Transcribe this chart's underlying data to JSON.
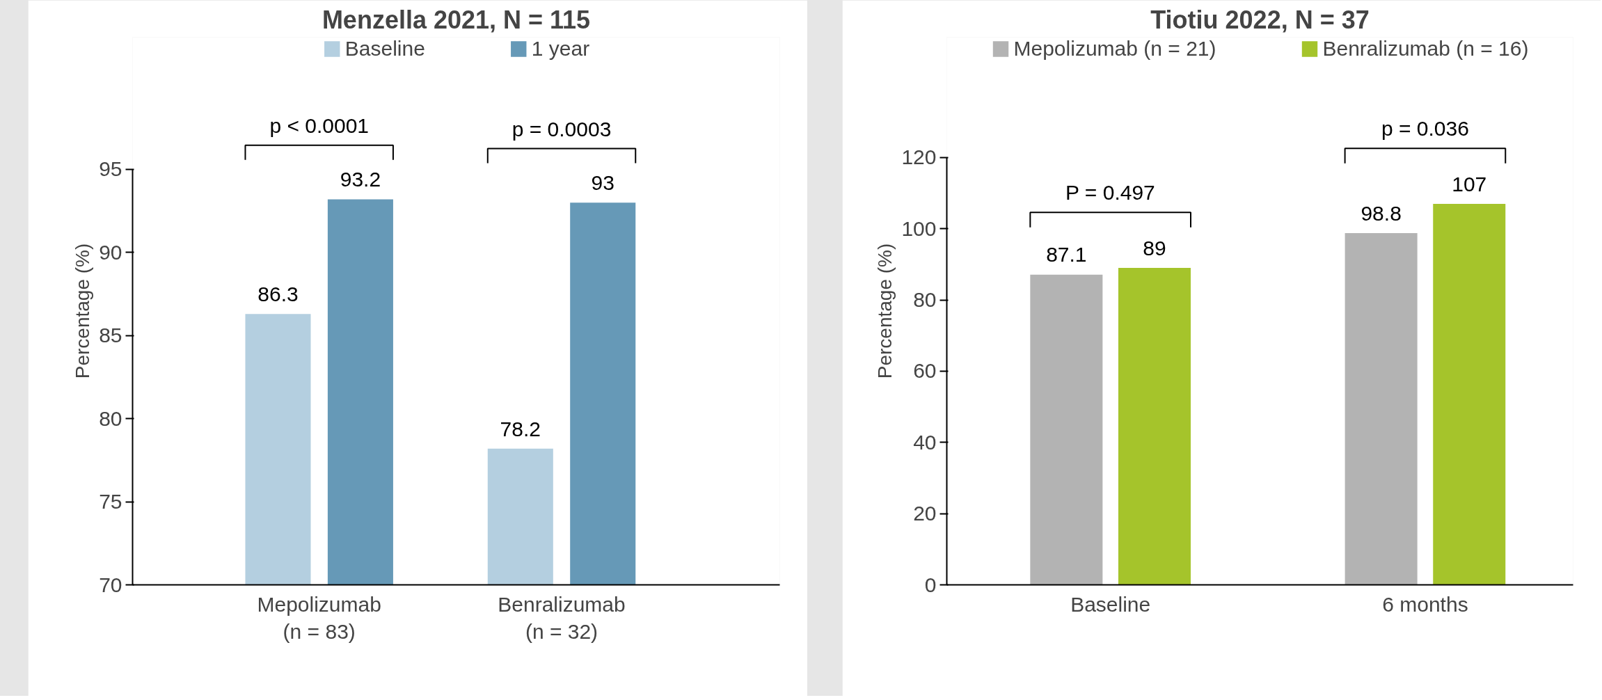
{
  "chart_data": [
    {
      "type": "bar",
      "title": "Menzella 2021, N = 115",
      "ylabel": "Percentage (%)",
      "categories": [
        "Mepolizumab\n(n = 83)",
        "Benralizumab\n(n = 32)"
      ],
      "series": [
        {
          "name": "Baseline",
          "color": "#b4cfe0",
          "values": [
            86.3,
            78.2
          ]
        },
        {
          "name": "1 year",
          "color": "#6699b7",
          "values": [
            93.2,
            93
          ]
        }
      ],
      "ylim": [
        70,
        95
      ],
      "yticks": [
        70,
        75,
        80,
        85,
        90,
        95
      ],
      "data_labels": true,
      "legend": "top",
      "grid": false,
      "annotations": [
        "p < 0.0001",
        "p = 0.0003"
      ]
    },
    {
      "type": "bar",
      "title": "Tiotiu 2022, N = 37",
      "ylabel": "Percentage (%)",
      "categories": [
        "Baseline",
        "6 months"
      ],
      "series": [
        {
          "name": "Mepolizumab (n = 21)",
          "color": "#b3b3b3",
          "values": [
            87.1,
            98.8
          ]
        },
        {
          "name": "Benralizumab (n = 16)",
          "color": "#a5c42b",
          "values": [
            89,
            107
          ]
        }
      ],
      "ylim": [
        0,
        120
      ],
      "yticks": [
        0,
        20,
        40,
        60,
        80,
        100,
        120
      ],
      "data_labels": true,
      "legend": "top",
      "grid": false,
      "annotations": [
        "P = 0.497",
        "p = 0.036"
      ]
    }
  ]
}
